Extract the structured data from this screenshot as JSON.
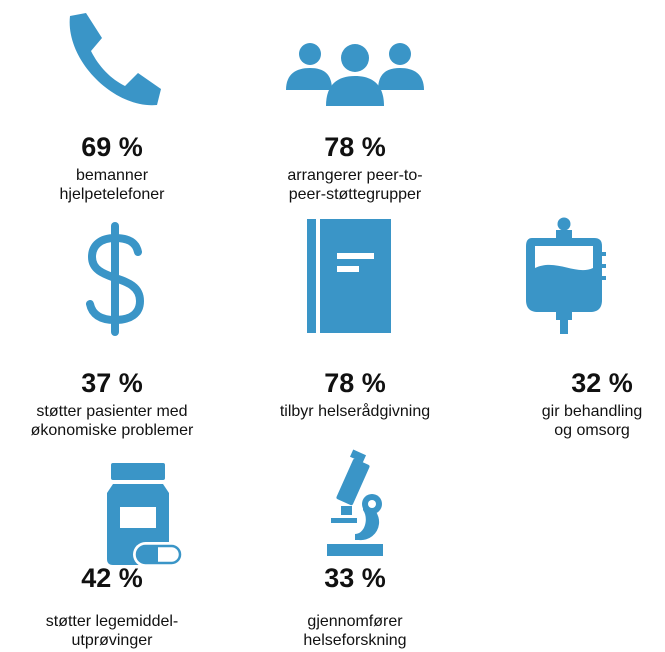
{
  "accent_color": "#3a95c7",
  "stats": [
    {
      "icon": "phone-icon",
      "percent": "69 %",
      "description": "bemanner\nhjelpetelefoner"
    },
    {
      "icon": "people-group-icon",
      "percent": "78 %",
      "description": "arrangerer peer-to-\npeer-støttegrupper"
    },
    {
      "icon": "dollar-icon",
      "percent": "37 %",
      "description": "støtter pasienter med\nøkonomiske problemer"
    },
    {
      "icon": "book-icon",
      "percent": "78 %",
      "description": "tilbyr helserådgivning"
    },
    {
      "icon": "iv-bag-icon",
      "percent": "32 %",
      "description": "gir behandling\nog omsorg"
    },
    {
      "icon": "medicine-bottle-icon",
      "percent": "42 %",
      "description": "støtter legemiddel-\nutprøvinger"
    },
    {
      "icon": "microscope-icon",
      "percent": "33 %",
      "description": "gjennomfører\nhelseforskning"
    }
  ]
}
